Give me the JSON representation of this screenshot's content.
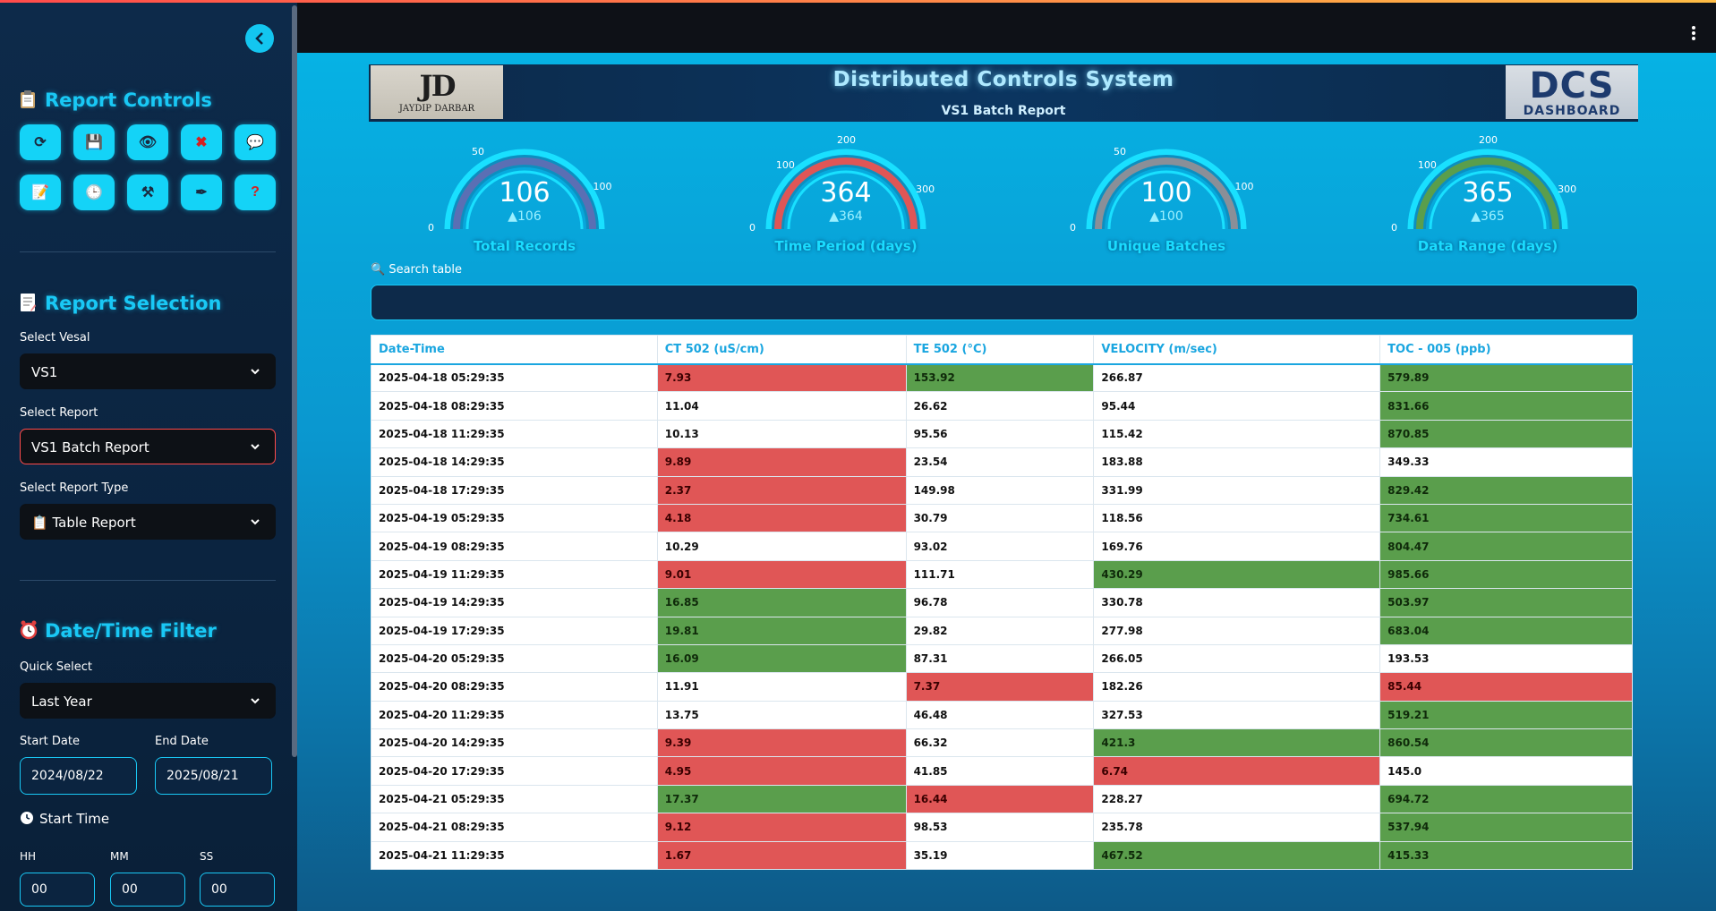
{
  "sidebar": {
    "report_controls": {
      "title": "Report Controls",
      "buttons": [
        {
          "icon": "refresh-icon",
          "glyph": "⟳"
        },
        {
          "icon": "save-icon",
          "glyph": "💾"
        },
        {
          "icon": "eye-icon",
          "glyph": "👁"
        },
        {
          "icon": "close-icon",
          "glyph": "✖"
        },
        {
          "icon": "chat-icon",
          "glyph": "💬"
        },
        {
          "icon": "memo-icon",
          "glyph": "📝"
        },
        {
          "icon": "clock-icon",
          "glyph": "🕒"
        },
        {
          "icon": "tools-icon",
          "glyph": "⚒"
        },
        {
          "icon": "pen-icon",
          "glyph": "✒"
        },
        {
          "icon": "help-icon",
          "glyph": "?"
        }
      ]
    },
    "report_selection": {
      "title": "Report Selection",
      "vesal_label": "Select Vesal",
      "vesal_value": "VS1",
      "report_label": "Select Report",
      "report_value": "VS1 Batch Report",
      "type_label": "Select Report Type",
      "type_value": "📋 Table Report"
    },
    "datetime_filter": {
      "title": "Date/Time Filter",
      "quick_label": "Quick Select",
      "quick_value": "Last Year",
      "start_date_label": "Start Date",
      "start_date_value": "2024/08/22",
      "end_date_label": "End Date",
      "end_date_value": "2025/08/21",
      "start_time_label": "Start Time",
      "hh_label": "HH",
      "hh_value": "00",
      "mm_label": "MM",
      "mm_value": "00",
      "ss_label": "SS",
      "ss_value": "00"
    }
  },
  "banner": {
    "title": "Distributed Controls System",
    "subtitle": "VS1 Batch Report",
    "logo_left_text": "JD",
    "logo_left_name": "JAYDIP DARBAR",
    "logo_right_text": "DCS",
    "logo_right_sub": "DASHBOARD"
  },
  "gauges": [
    {
      "label": "Total Records",
      "value": "106",
      "delta": "▲106",
      "fill": 1.0,
      "color": "#5a6fb4",
      "ticks": [
        "0",
        "50",
        "100"
      ]
    },
    {
      "label": "Time Period (days)",
      "value": "364",
      "delta": "▲364",
      "fill": 1.0,
      "color": "#e05656",
      "ticks": [
        "0",
        "100",
        "200",
        "300"
      ]
    },
    {
      "label": "Unique Batches",
      "value": "100",
      "delta": "▲100",
      "fill": 1.0,
      "color": "#8a8f98",
      "ticks": [
        "0",
        "50",
        "100"
      ]
    },
    {
      "label": "Data Range (days)",
      "value": "365",
      "delta": "▲365",
      "fill": 1.0,
      "color": "#5a9e4c",
      "ticks": [
        "0",
        "100",
        "200",
        "300"
      ]
    }
  ],
  "search": {
    "label": "🔍 Search table",
    "value": ""
  },
  "table": {
    "headers": [
      "Date-Time",
      "CT 502 (uS/cm)",
      "TE 502 (°C)",
      "VELOCITY (m/sec)",
      "TOC - 005 (ppb)"
    ],
    "rows": [
      {
        "cells": [
          "2025-04-18 05:29:35",
          "7.93",
          "153.92",
          "266.87",
          "579.89"
        ],
        "status": [
          "",
          "r",
          "g",
          "",
          "g"
        ]
      },
      {
        "cells": [
          "2025-04-18 08:29:35",
          "11.04",
          "26.62",
          "95.44",
          "831.66"
        ],
        "status": [
          "",
          "",
          "",
          "",
          "g"
        ]
      },
      {
        "cells": [
          "2025-04-18 11:29:35",
          "10.13",
          "95.56",
          "115.42",
          "870.85"
        ],
        "status": [
          "",
          "",
          "",
          "",
          "g"
        ]
      },
      {
        "cells": [
          "2025-04-18 14:29:35",
          "9.89",
          "23.54",
          "183.88",
          "349.33"
        ],
        "status": [
          "",
          "r",
          "",
          "",
          ""
        ]
      },
      {
        "cells": [
          "2025-04-18 17:29:35",
          "2.37",
          "149.98",
          "331.99",
          "829.42"
        ],
        "status": [
          "",
          "r",
          "",
          "",
          "g"
        ]
      },
      {
        "cells": [
          "2025-04-19 05:29:35",
          "4.18",
          "30.79",
          "118.56",
          "734.61"
        ],
        "status": [
          "",
          "r",
          "",
          "",
          "g"
        ]
      },
      {
        "cells": [
          "2025-04-19 08:29:35",
          "10.29",
          "93.02",
          "169.76",
          "804.47"
        ],
        "status": [
          "",
          "",
          "",
          "",
          "g"
        ]
      },
      {
        "cells": [
          "2025-04-19 11:29:35",
          "9.01",
          "111.71",
          "430.29",
          "985.66"
        ],
        "status": [
          "",
          "r",
          "",
          "g",
          "g"
        ]
      },
      {
        "cells": [
          "2025-04-19 14:29:35",
          "16.85",
          "96.78",
          "330.78",
          "503.97"
        ],
        "status": [
          "",
          "g",
          "",
          "",
          "g"
        ]
      },
      {
        "cells": [
          "2025-04-19 17:29:35",
          "19.81",
          "29.82",
          "277.98",
          "683.04"
        ],
        "status": [
          "",
          "g",
          "",
          "",
          "g"
        ]
      },
      {
        "cells": [
          "2025-04-20 05:29:35",
          "16.09",
          "87.31",
          "266.05",
          "193.53"
        ],
        "status": [
          "",
          "g",
          "",
          "",
          ""
        ]
      },
      {
        "cells": [
          "2025-04-20 08:29:35",
          "11.91",
          "7.37",
          "182.26",
          "85.44"
        ],
        "status": [
          "",
          "",
          "r",
          "",
          "r"
        ]
      },
      {
        "cells": [
          "2025-04-20 11:29:35",
          "13.75",
          "46.48",
          "327.53",
          "519.21"
        ],
        "status": [
          "",
          "",
          "",
          "",
          "g"
        ]
      },
      {
        "cells": [
          "2025-04-20 14:29:35",
          "9.39",
          "66.32",
          "421.3",
          "860.54"
        ],
        "status": [
          "",
          "r",
          "",
          "g",
          "g"
        ]
      },
      {
        "cells": [
          "2025-04-20 17:29:35",
          "4.95",
          "41.85",
          "6.74",
          "145.0"
        ],
        "status": [
          "",
          "r",
          "",
          "r",
          ""
        ]
      },
      {
        "cells": [
          "2025-04-21 05:29:35",
          "17.37",
          "16.44",
          "228.27",
          "694.72"
        ],
        "status": [
          "",
          "g",
          "r",
          "",
          "g"
        ]
      },
      {
        "cells": [
          "2025-04-21 08:29:35",
          "9.12",
          "98.53",
          "235.78",
          "537.94"
        ],
        "status": [
          "",
          "r",
          "",
          "",
          "g"
        ]
      },
      {
        "cells": [
          "2025-04-21 11:29:35",
          "1.67",
          "35.19",
          "467.52",
          "415.33"
        ],
        "status": [
          "",
          "r",
          "",
          "g",
          "g"
        ]
      }
    ]
  },
  "colors": {
    "accent": "#19c8f5",
    "red": "#e05656",
    "green": "#5a9e4c"
  }
}
